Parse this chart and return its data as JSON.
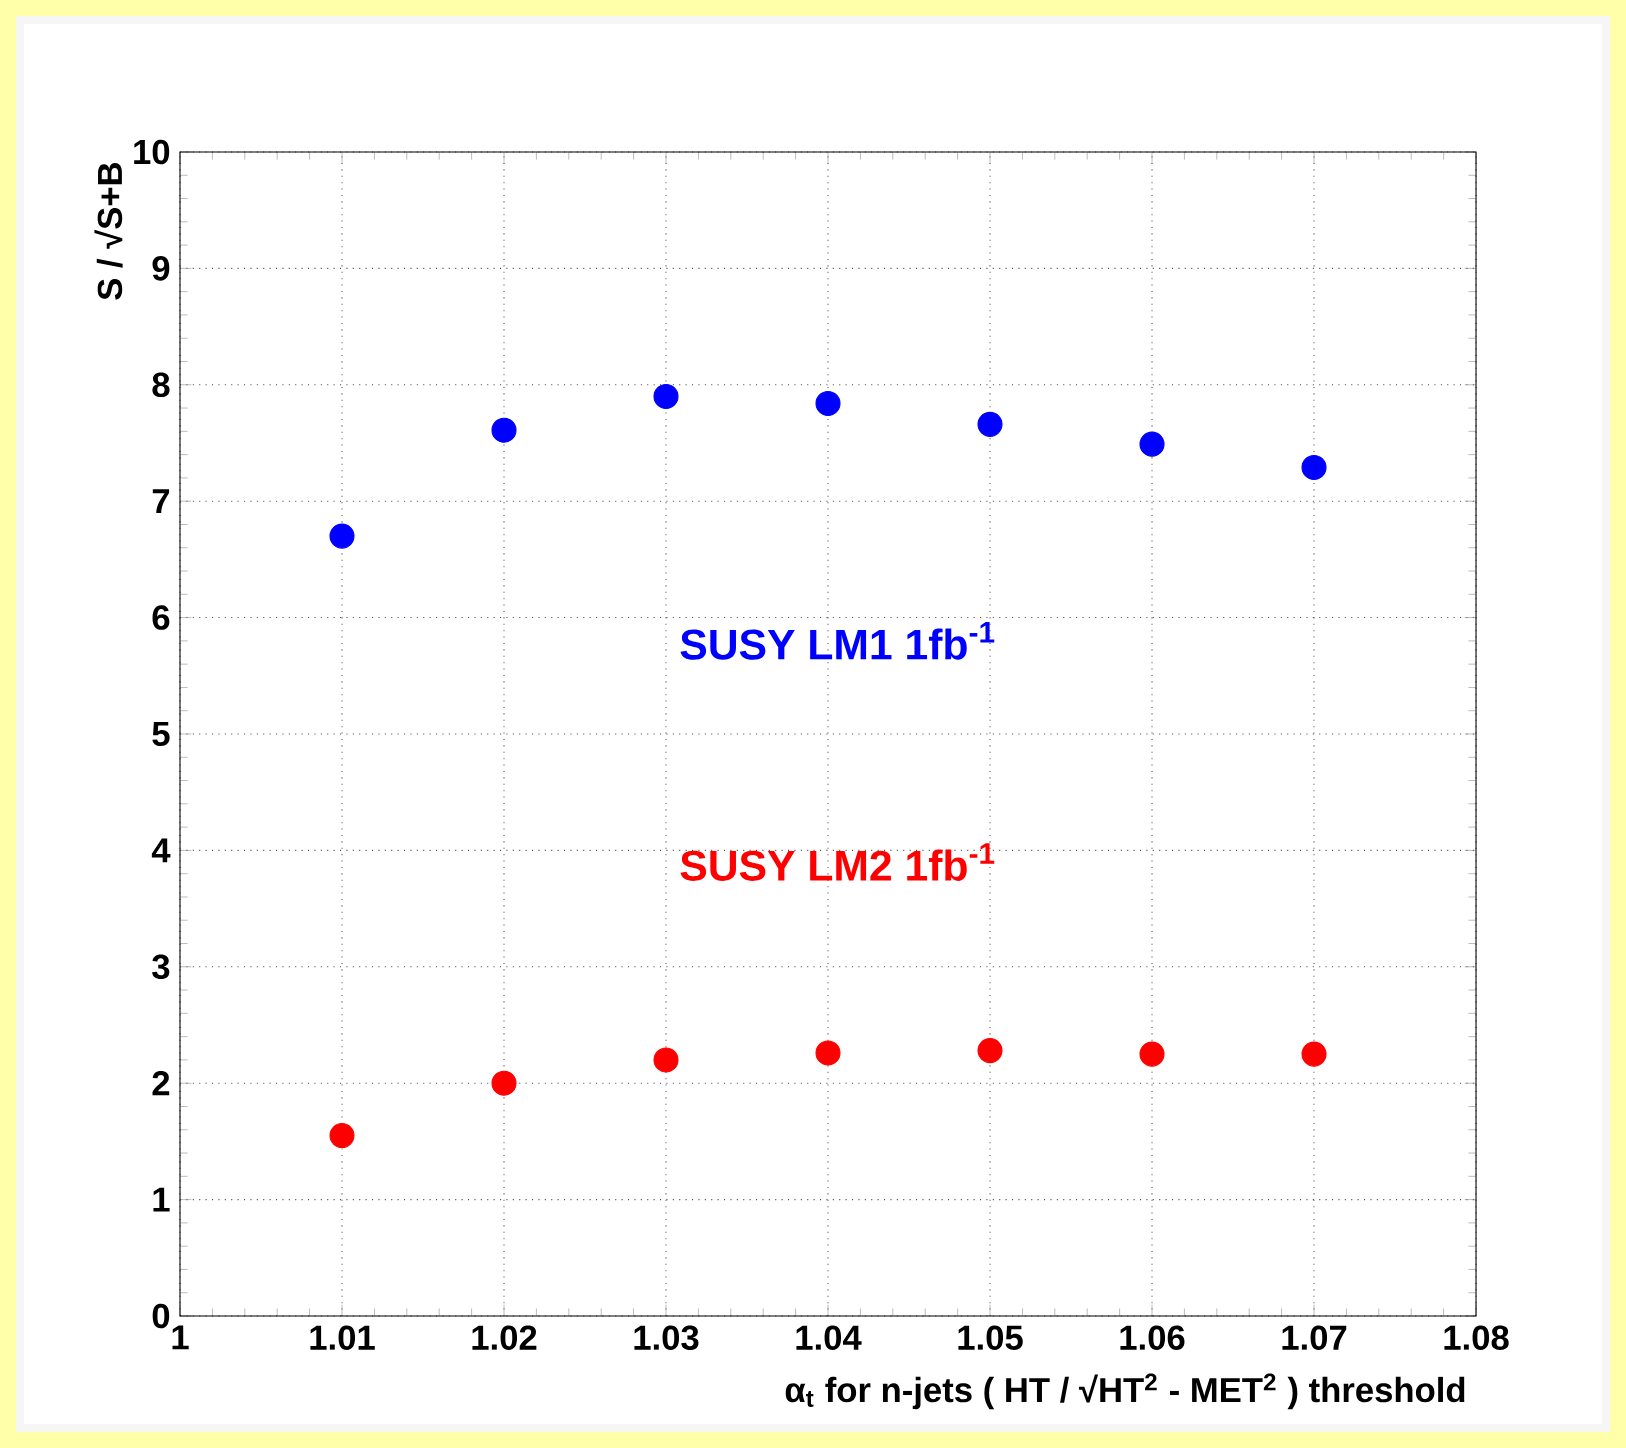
{
  "chart_data": {
    "type": "scatter",
    "xlabel": "α$_{t}$ for n-jets ( HT / √HT$^{2}$ - MET$^{2}$ ) threshold",
    "ylabel": "S / √S+B",
    "x": [
      1.01,
      1.02,
      1.03,
      1.04,
      1.05,
      1.06,
      1.07
    ],
    "series": [
      {
        "name": "SUSY LM1  1fb$^{-1}$",
        "color": "#0000ff",
        "values": [
          6.7,
          7.61,
          7.9,
          7.84,
          7.66,
          7.49,
          7.29
        ]
      },
      {
        "name": "SUSY LM2  1fb$^{-1}$",
        "color": "#ff0000",
        "values": [
          1.55,
          2.0,
          2.2,
          2.26,
          2.28,
          2.25,
          2.25
        ]
      }
    ],
    "xlim": [
      1,
      1.08
    ],
    "xticks": [
      1,
      1.01,
      1.02,
      1.03,
      1.04,
      1.05,
      1.06,
      1.07,
      1.08
    ],
    "ylim": [
      0,
      10
    ],
    "yticks": [
      0,
      1,
      2,
      3,
      4,
      5,
      6,
      7,
      8,
      9,
      10
    ],
    "grid": true,
    "legend": false,
    "marker": "circle"
  }
}
